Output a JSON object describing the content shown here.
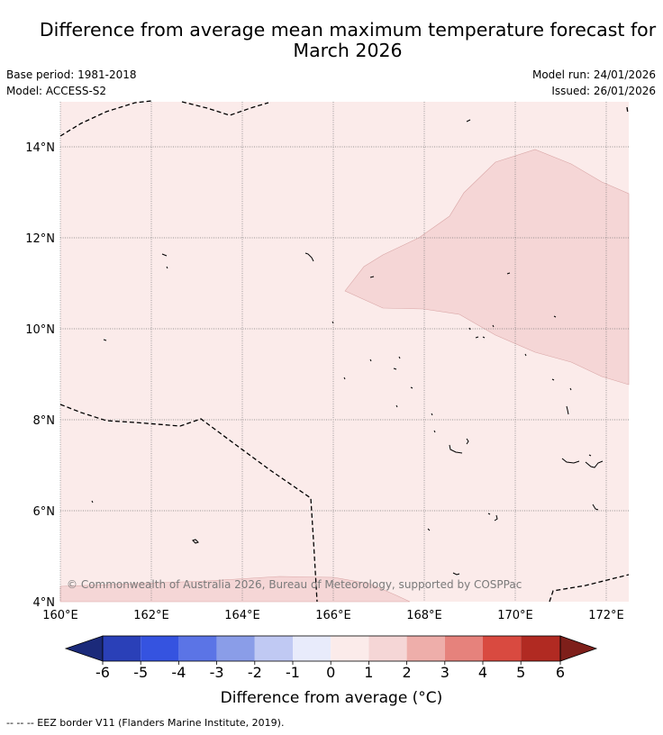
{
  "title_line1": "Difference from average mean maximum temperature forecast for",
  "title_line2": "March 2026",
  "base_period": "Base period: 1981-2018",
  "model": "Model: ACCESS-S2",
  "model_run": "Model run: 24/01/2026",
  "issued": "Issued: 26/01/2026",
  "copyright": "© Commonwealth of Australia 2026, Bureau of Meteorology, supported by COSPPac",
  "colorbar_label": "Difference from average (°C)",
  "footer_legend": "--  --  -- EEZ border V11 (Flanders Marine Institute, 2019).",
  "map": {
    "lon_range": [
      160,
      172.5
    ],
    "lat_range": [
      4,
      15
    ],
    "x_ticks": [
      "160°E",
      "162°E",
      "164°E",
      "166°E",
      "168°E",
      "170°E",
      "172°E"
    ],
    "y_ticks": [
      "4°N",
      "6°N",
      "8°N",
      "10°N",
      "12°N",
      "14°N"
    ],
    "regions": [
      {
        "category": "0 to 1",
        "color": "#fbebea",
        "extent": "whole map"
      },
      {
        "category": "1 to 2",
        "color": "#f5d6d6",
        "extent": "north-east, from about 166.3°E to 172.5°E, 8.8°N to 13.9°N"
      },
      {
        "category": "1 to 2",
        "color": "#f5d6d6",
        "extent": "south-west band along 4°N to 4.6°N, 160°E to 167.5°E"
      }
    ]
  },
  "colorbar": {
    "ticks": [
      "-6",
      "-5",
      "-4",
      "-3",
      "-2",
      "-1",
      "0",
      "1",
      "2",
      "3",
      "4",
      "5",
      "6"
    ],
    "colors": [
      "#1b2a7a",
      "#2a40b8",
      "#3553e0",
      "#5b74e6",
      "#8a9de8",
      "#c0c9f3",
      "#e8ebfb",
      "#fbebea",
      "#f5d6d6",
      "#eeaeaa",
      "#e6827c",
      "#d94a40",
      "#b12a22",
      "#7e1f1a"
    ]
  }
}
